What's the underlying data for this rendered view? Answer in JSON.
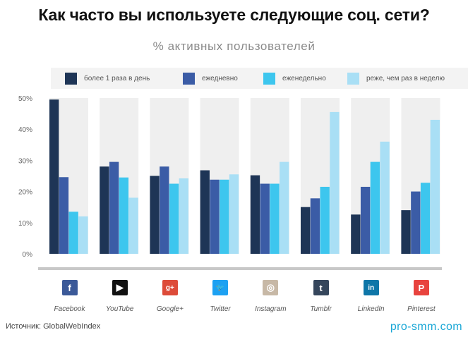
{
  "title": "Как часто вы используете следующие соц. сети?",
  "subtitle": "% активных пользователей",
  "source": "Источник: GlobalWebIndex",
  "site": "pro-smm.com",
  "colors": {
    "series": [
      "#1e3556",
      "#3b5ca6",
      "#3dc6ee",
      "#a9dff5"
    ],
    "group_bg": "#efefef",
    "baseline": "#c8c8c8"
  },
  "icons": [
    {
      "name": "facebook-icon",
      "glyph": "f",
      "color": "#3b5998"
    },
    {
      "name": "youtube-icon",
      "glyph": "▶",
      "color": "#111111"
    },
    {
      "name": "google-plus-icon",
      "glyph": "g+",
      "color": "#dd4b39"
    },
    {
      "name": "twitter-icon",
      "glyph": "🐦",
      "color": "#1da1f2"
    },
    {
      "name": "instagram-icon",
      "glyph": "◎",
      "color": "#c7b8a6"
    },
    {
      "name": "tumblr-icon",
      "glyph": "t",
      "color": "#35465c"
    },
    {
      "name": "linkedin-icon",
      "glyph": "in",
      "color": "#0e76a8"
    },
    {
      "name": "pinterest-icon",
      "glyph": "P",
      "color": "#e8433e"
    }
  ],
  "chart_data": {
    "type": "bar",
    "categories": [
      "Facebook",
      "YouTube",
      "Google+",
      "Twitter",
      "Instagram",
      "Tumblr",
      "LinkedIn",
      "Pinterest"
    ],
    "series": [
      {
        "name": "более 1 раза в день",
        "values": [
          49.5,
          28,
          25,
          26.8,
          25.2,
          15,
          12.6,
          14
        ]
      },
      {
        "name": "ежедневно",
        "values": [
          24.6,
          29.5,
          28,
          23.8,
          22.5,
          17.8,
          21.5,
          20
        ]
      },
      {
        "name": "еженедельно",
        "values": [
          13.5,
          24.5,
          22.5,
          23.8,
          22.5,
          21.5,
          29.5,
          22.8
        ]
      },
      {
        "name": "реже, чем раз в неделю",
        "values": [
          12,
          18,
          24.2,
          25.5,
          29.5,
          45.5,
          36,
          43
        ]
      }
    ],
    "ytick_labels": [
      "0%",
      "10%",
      "20%",
      "30%",
      "40%",
      "50%"
    ],
    "ylim": [
      0,
      50
    ],
    "legend": "top",
    "grid": false
  }
}
